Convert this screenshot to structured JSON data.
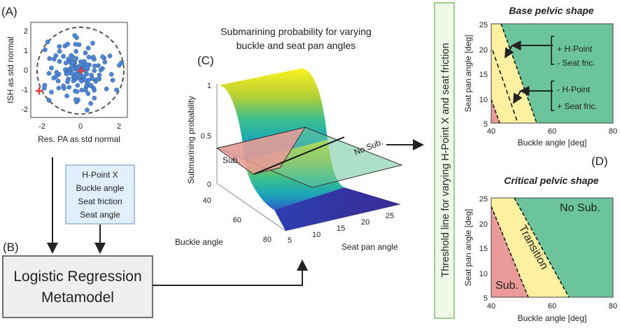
{
  "panelA": {
    "letter": "(A)",
    "xlabel": "Res. PA as std normal",
    "ylabel": "ISH as std normal",
    "xticks": [
      "-2",
      "0",
      "2"
    ],
    "yticks": [
      "2",
      "1",
      "0",
      "-1",
      "-2"
    ]
  },
  "inputs": {
    "items": [
      "H-Point X",
      "Buckle angle",
      "Seat friction",
      "Seat angle"
    ]
  },
  "panelB": {
    "letter": "(B)",
    "line1": "Logistic Regression",
    "line2": "Metamodel"
  },
  "panelC": {
    "letter": "(C)",
    "title1": "Submarining probability for varying",
    "title2": "buckle and seat pan angles",
    "zlabel": "Submarining probability",
    "xlabel": "Buckle angle",
    "ylabel": "Seat pan angle",
    "zticks": [
      "1",
      "0.5",
      "0"
    ],
    "buckle_ticks": [
      "40",
      "60",
      "80"
    ],
    "seat_ticks": [
      "5",
      "10",
      "15",
      "20",
      "25"
    ],
    "sub_label": "Sub.",
    "nosub_label": "No Sub."
  },
  "threshold_box": {
    "text": "Threshold line for varying H-Point X and seat friction"
  },
  "panelBase": {
    "title": "Base pelvic shape",
    "xlabel": "Buckle angle [deg]",
    "ylabel": "Seat pan angle [deg]",
    "xticks": [
      "40",
      "60",
      "80"
    ],
    "yticks": [
      "25",
      "20",
      "15",
      "10",
      "5"
    ],
    "ann1_line1": "+ H-Point",
    "ann1_line2": "- Seat fric.",
    "ann2_line1": "- H-Point",
    "ann2_line2": "+ Seat fric."
  },
  "panelD": {
    "letter": "(D)",
    "title": "Critical pelvic shape",
    "xlabel": "Buckle angle [deg]",
    "ylabel": "Seat pan angle [deg]",
    "xticks": [
      "40",
      "60",
      "80"
    ],
    "yticks": [
      "25",
      "20",
      "15",
      "10",
      "5"
    ],
    "sub": "Sub.",
    "transition": "Transition",
    "nosub": "No Sub."
  },
  "colors": {
    "red": "#ea9a98",
    "yellow": "#fdf0a0",
    "green": "#6cc49c",
    "point": "#4f86d1",
    "input_fill": "#e1eefb",
    "input_border": "#7aa6d8",
    "metamodel_fill": "#efefef",
    "threshold_border": "#7cc46a",
    "threshold_fill": "#f0f8e8"
  }
}
